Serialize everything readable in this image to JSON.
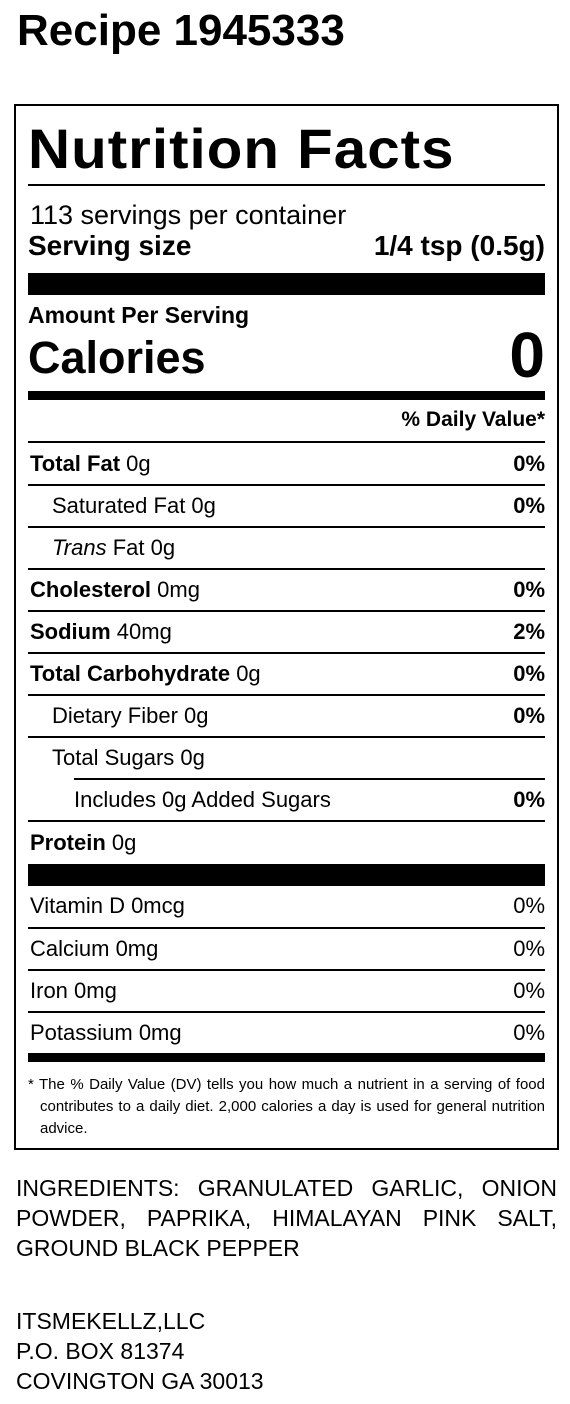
{
  "page_title": "Recipe 1945333",
  "label": {
    "title": "Nutrition Facts",
    "servings": "113 servings per container",
    "serving_size_label": "Serving size",
    "serving_size_value": "1/4 tsp (0.5g)",
    "amount_per_serving": "Amount Per Serving",
    "calories_label": "Calories",
    "calories_value": "0",
    "dv_header": "% Daily Value*",
    "nutrients": [
      {
        "label": "Total Fat",
        "amount": "0g",
        "pct": "0%"
      },
      {
        "label": "Saturated Fat 0g",
        "pct": "0%"
      },
      {
        "label_italic": "Trans",
        "label": "Fat 0g"
      },
      {
        "label": "Cholesterol",
        "amount": "0mg",
        "pct": "0%"
      },
      {
        "label": "Sodium",
        "amount": "40mg",
        "pct": "2%"
      },
      {
        "label": "Total Carbohydrate",
        "amount": "0g",
        "pct": "0%"
      },
      {
        "label": "Dietary Fiber 0g",
        "pct": "0%"
      },
      {
        "label": "Total Sugars 0g"
      },
      {
        "label": "Includes 0g Added Sugars",
        "pct": "0%"
      },
      {
        "label": "Protein",
        "amount": "0g"
      }
    ],
    "vitamins": [
      {
        "label": "Vitamin D 0mcg",
        "pct": "0%"
      },
      {
        "label": "Calcium 0mg",
        "pct": "0%"
      },
      {
        "label": "Iron 0mg",
        "pct": "0%"
      },
      {
        "label": "Potassium 0mg",
        "pct": "0%"
      }
    ],
    "footnote": "* The % Daily Value (DV) tells you how much a nutrient in a serving of food contributes to a daily diet. 2,000 calories a day is used for general nutrition advice."
  },
  "ingredients": "INGREDIENTS: GRANULATED GARLIC, ONION POWDER, PAPRIKA, HIMALAYAN PINK SALT, GROUND BLACK PEPPER",
  "company": {
    "name": "ITSMEKELLZ,LLC",
    "address1": "P.O. BOX 81374",
    "address2": "COVINGTON GA 30013"
  }
}
